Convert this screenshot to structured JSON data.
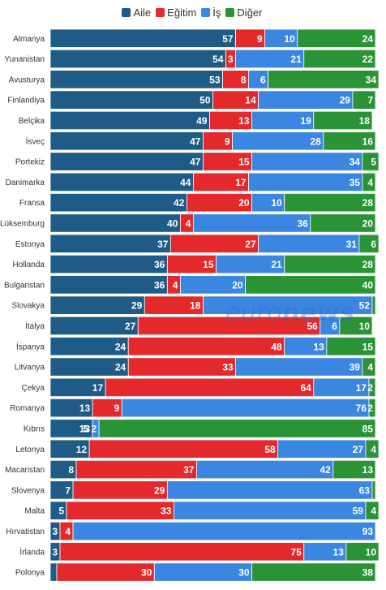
{
  "chart_data": {
    "type": "bar",
    "orientation": "horizontal",
    "stacked": true,
    "legend_position": "top",
    "xlim": [
      0,
      100
    ],
    "grid": false,
    "categories": [
      "Almanya",
      "Yunanistan",
      "Avusturya",
      "Finlandiya",
      "Belçika",
      "İsveç",
      "Portekiz",
      "Danimarka",
      "Fransa",
      "Lüksemburg",
      "Estonya",
      "Hollanda",
      "Bulgaristan",
      "Slovakya",
      "İtalya",
      "İspanya",
      "Litvanya",
      "Çekya",
      "Romanya",
      "Kıbrıs",
      "Letonya",
      "Macaristan",
      "Slovenya",
      "Malta",
      "Hırvatistan",
      "İrlanda",
      "Polonya"
    ],
    "series": [
      {
        "name": "Aile",
        "color": "#1f5b87",
        "values": [
          57,
          54,
          53,
          50,
          49,
          47,
          47,
          44,
          42,
          40,
          37,
          36,
          36,
          29,
          27,
          24,
          24,
          17,
          13,
          13,
          12,
          8,
          7,
          5,
          3,
          3,
          2
        ]
      },
      {
        "name": "Eğitim",
        "color": "#e3292b",
        "values": [
          9,
          3,
          8,
          14,
          13,
          9,
          15,
          17,
          20,
          4,
          27,
          15,
          4,
          18,
          56,
          48,
          33,
          64,
          9,
          0,
          58,
          37,
          29,
          33,
          4,
          75,
          30
        ]
      },
      {
        "name": "İş",
        "color": "#3a86e0",
        "values": [
          10,
          21,
          6,
          29,
          19,
          28,
          34,
          35,
          10,
          36,
          31,
          21,
          20,
          52,
          6,
          13,
          39,
          17,
          76,
          2,
          27,
          42,
          63,
          59,
          93,
          13,
          30
        ]
      },
      {
        "name": "Diğer",
        "color": "#2a9336",
        "values": [
          24,
          22,
          34,
          7,
          18,
          16,
          5,
          4,
          28,
          20,
          6,
          28,
          40,
          1,
          10,
          15,
          4,
          2,
          2,
          85,
          4,
          13,
          1,
          4,
          0,
          10,
          38
        ]
      }
    ],
    "labels": [
      [
        "57",
        "9",
        "10",
        "24"
      ],
      [
        "54",
        "3",
        "21",
        "22"
      ],
      [
        "53",
        "8",
        "6",
        "34"
      ],
      [
        "50",
        "14",
        "29",
        "7"
      ],
      [
        "49",
        "13",
        "19",
        "18"
      ],
      [
        "47",
        "9",
        "28",
        "16"
      ],
      [
        "47",
        "15",
        "34",
        "5"
      ],
      [
        "44",
        "17",
        "35",
        "4"
      ],
      [
        "42",
        "20",
        "10",
        "28"
      ],
      [
        "40",
        "4",
        "36",
        "20"
      ],
      [
        "37",
        "27",
        "31",
        "6"
      ],
      [
        "36",
        "15",
        "21",
        "28"
      ],
      [
        "36",
        "4",
        "20",
        "40"
      ],
      [
        "29",
        "18",
        "52",
        ""
      ],
      [
        "27",
        "56",
        "6",
        "10"
      ],
      [
        "24",
        "48",
        "13",
        "15"
      ],
      [
        "24",
        "33",
        "39",
        "4"
      ],
      [
        "17",
        "64",
        "17",
        "2"
      ],
      [
        "13",
        "9",
        "76",
        "2"
      ],
      [
        "13",
        "",
        "5 2",
        "85"
      ],
      [
        "12",
        "58",
        "27",
        "4"
      ],
      [
        "8",
        "37",
        "42",
        "13"
      ],
      [
        "7",
        "29",
        "63",
        ""
      ],
      [
        "5",
        "33",
        "59",
        "4"
      ],
      [
        "3",
        "4",
        "93",
        ""
      ],
      [
        "3",
        "75",
        "13",
        "10"
      ],
      [
        "",
        "30",
        "30",
        "38"
      ]
    ]
  },
  "watermark": {
    "part1": "euro",
    "part2": "news"
  }
}
